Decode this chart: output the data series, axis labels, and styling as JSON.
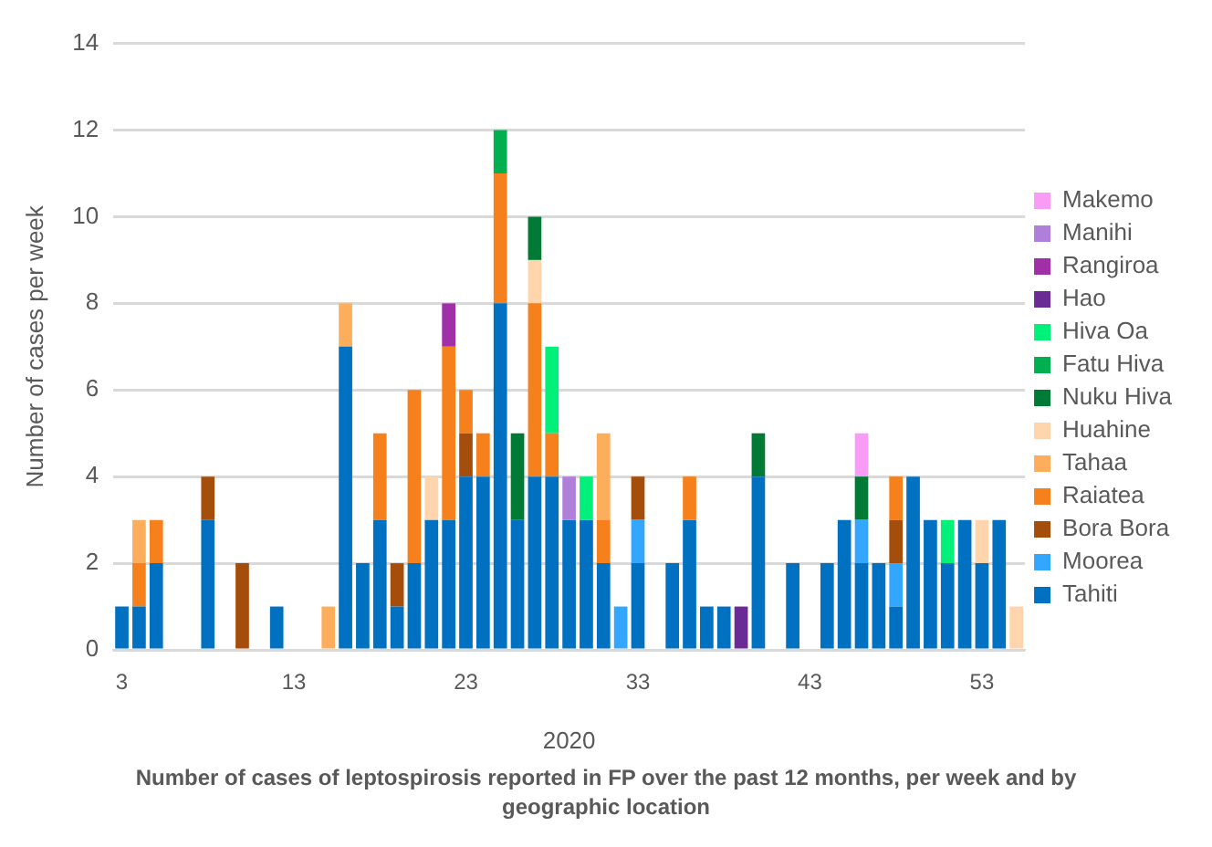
{
  "chart_data": {
    "type": "bar",
    "stacked": true,
    "title": "Number of cases of leptospirosis reported in FP over the past 12 months, per week and by geographic location",
    "xlabel": "2020",
    "ylabel": "Number of cases per week",
    "categories": [
      "3",
      null,
      null,
      null,
      null,
      null,
      null,
      null,
      null,
      null,
      "13",
      null,
      null,
      null,
      null,
      null,
      null,
      null,
      null,
      null,
      "23",
      null,
      null,
      null,
      null,
      null,
      null,
      null,
      null,
      null,
      "33",
      null,
      null,
      null,
      null,
      null,
      null,
      null,
      null,
      null,
      "43",
      null,
      null,
      null,
      null,
      null,
      null,
      null,
      null,
      null,
      "53",
      null,
      null
    ],
    "ylim": [
      0,
      14
    ],
    "yticks": [
      0,
      2,
      4,
      6,
      8,
      10,
      12,
      14
    ],
    "grid": "y",
    "legend": "right",
    "series": [
      {
        "name": "Tahiti",
        "color": "#0070c0",
        "values": [
          1,
          1,
          2,
          null,
          null,
          3,
          null,
          null,
          null,
          1,
          null,
          null,
          null,
          7,
          2,
          3,
          1,
          2,
          3,
          3,
          4,
          4,
          8,
          3,
          4,
          4,
          3,
          3,
          2,
          null,
          2,
          null,
          2,
          3,
          1,
          1,
          null,
          4,
          null,
          2,
          null,
          2,
          3,
          2,
          2,
          1,
          4,
          3,
          2,
          3,
          2,
          3,
          null
        ]
      },
      {
        "name": "Moorea",
        "color": "#33a6ff",
        "values": [
          null,
          null,
          null,
          null,
          null,
          null,
          null,
          null,
          null,
          null,
          null,
          null,
          null,
          null,
          null,
          null,
          null,
          null,
          null,
          null,
          null,
          null,
          null,
          null,
          null,
          null,
          null,
          null,
          null,
          1,
          1,
          null,
          null,
          null,
          null,
          null,
          null,
          null,
          null,
          null,
          null,
          null,
          null,
          1,
          null,
          1,
          null,
          null,
          null,
          null,
          null,
          null,
          null
        ]
      },
      {
        "name": "Bora Bora",
        "color": "#a54e0b",
        "values": [
          null,
          null,
          null,
          null,
          null,
          1,
          null,
          2,
          null,
          null,
          null,
          null,
          null,
          null,
          null,
          null,
          1,
          null,
          null,
          null,
          1,
          null,
          null,
          null,
          null,
          null,
          null,
          null,
          null,
          null,
          1,
          null,
          null,
          null,
          null,
          null,
          null,
          null,
          null,
          null,
          null,
          null,
          null,
          null,
          null,
          1,
          null,
          null,
          null,
          null,
          null,
          null,
          null
        ]
      },
      {
        "name": "Raiatea",
        "color": "#f5801c",
        "values": [
          null,
          1,
          1,
          null,
          null,
          null,
          null,
          null,
          null,
          null,
          null,
          null,
          null,
          null,
          null,
          2,
          null,
          4,
          null,
          4,
          1,
          1,
          3,
          null,
          4,
          1,
          null,
          null,
          1,
          null,
          null,
          null,
          null,
          1,
          null,
          null,
          null,
          null,
          null,
          null,
          null,
          null,
          null,
          null,
          null,
          1,
          null,
          null,
          null,
          null,
          null,
          null,
          null
        ]
      },
      {
        "name": "Tahaa",
        "color": "#fdae5c",
        "values": [
          null,
          1,
          null,
          null,
          null,
          null,
          null,
          null,
          null,
          null,
          null,
          null,
          1,
          1,
          null,
          null,
          null,
          null,
          null,
          null,
          null,
          null,
          null,
          null,
          null,
          null,
          null,
          null,
          2,
          null,
          null,
          null,
          null,
          null,
          null,
          null,
          null,
          null,
          null,
          null,
          null,
          null,
          null,
          null,
          null,
          null,
          null,
          null,
          null,
          null,
          null,
          null,
          null
        ]
      },
      {
        "name": "Huahine",
        "color": "#fed5ac",
        "values": [
          null,
          null,
          null,
          null,
          null,
          null,
          null,
          null,
          null,
          null,
          null,
          null,
          null,
          null,
          null,
          null,
          null,
          null,
          1,
          null,
          null,
          null,
          null,
          null,
          1,
          null,
          null,
          null,
          null,
          null,
          null,
          null,
          null,
          null,
          null,
          null,
          null,
          null,
          null,
          null,
          null,
          null,
          null,
          null,
          null,
          null,
          null,
          null,
          null,
          null,
          1,
          null,
          1
        ]
      },
      {
        "name": "Nuku Hiva",
        "color": "#007a35",
        "values": [
          null,
          null,
          null,
          null,
          null,
          null,
          null,
          null,
          null,
          null,
          null,
          null,
          null,
          null,
          null,
          null,
          null,
          null,
          null,
          null,
          null,
          null,
          null,
          2,
          1,
          null,
          null,
          null,
          null,
          null,
          null,
          null,
          null,
          null,
          null,
          null,
          null,
          1,
          null,
          null,
          null,
          null,
          null,
          1,
          null,
          null,
          null,
          null,
          null,
          null,
          null,
          null,
          null
        ]
      },
      {
        "name": "Fatu Hiva",
        "color": "#00b050",
        "values": [
          null,
          null,
          null,
          null,
          null,
          null,
          null,
          null,
          null,
          null,
          null,
          null,
          null,
          null,
          null,
          null,
          null,
          null,
          null,
          null,
          null,
          null,
          1,
          null,
          null,
          null,
          null,
          null,
          null,
          null,
          null,
          null,
          null,
          null,
          null,
          null,
          null,
          null,
          null,
          null,
          null,
          null,
          null,
          null,
          null,
          null,
          null,
          null,
          null,
          null,
          null,
          null,
          null
        ]
      },
      {
        "name": "Hiva Oa",
        "color": "#00f07a",
        "values": [
          null,
          null,
          null,
          null,
          null,
          null,
          null,
          null,
          null,
          null,
          null,
          null,
          null,
          null,
          null,
          null,
          null,
          null,
          null,
          null,
          null,
          null,
          null,
          null,
          null,
          2,
          null,
          1,
          null,
          null,
          null,
          null,
          null,
          null,
          null,
          null,
          null,
          null,
          null,
          null,
          null,
          null,
          null,
          null,
          null,
          null,
          null,
          null,
          1,
          null,
          null,
          null,
          null
        ]
      },
      {
        "name": "Hao",
        "color": "#6a2b94",
        "values": [
          null,
          null,
          null,
          null,
          null,
          null,
          null,
          null,
          null,
          null,
          null,
          null,
          null,
          null,
          null,
          null,
          null,
          null,
          null,
          null,
          null,
          null,
          null,
          null,
          null,
          null,
          null,
          null,
          null,
          null,
          null,
          null,
          null,
          null,
          null,
          null,
          1,
          null,
          null,
          null,
          null,
          null,
          null,
          null,
          null,
          null,
          null,
          null,
          null,
          null,
          null,
          null,
          null
        ]
      },
      {
        "name": "Rangiroa",
        "color": "#a030a8",
        "values": [
          null,
          null,
          null,
          null,
          null,
          null,
          null,
          null,
          null,
          null,
          null,
          null,
          null,
          null,
          null,
          null,
          null,
          null,
          null,
          1,
          null,
          null,
          null,
          null,
          null,
          null,
          null,
          null,
          null,
          null,
          null,
          null,
          null,
          null,
          null,
          null,
          null,
          null,
          null,
          null,
          null,
          null,
          null,
          null,
          null,
          null,
          null,
          null,
          null,
          null,
          null,
          null,
          null
        ]
      },
      {
        "name": "Manihi",
        "color": "#b07fda",
        "values": [
          null,
          null,
          null,
          null,
          null,
          null,
          null,
          null,
          null,
          null,
          null,
          null,
          null,
          null,
          null,
          null,
          null,
          null,
          null,
          null,
          null,
          null,
          null,
          null,
          null,
          null,
          1,
          null,
          null,
          null,
          null,
          null,
          null,
          null,
          null,
          null,
          null,
          null,
          null,
          null,
          null,
          null,
          null,
          null,
          null,
          null,
          null,
          null,
          null,
          null,
          null,
          null,
          null
        ]
      },
      {
        "name": "Makemo",
        "color": "#f99cf5",
        "values": [
          null,
          null,
          null,
          null,
          null,
          null,
          null,
          null,
          null,
          null,
          null,
          null,
          null,
          null,
          null,
          null,
          null,
          null,
          null,
          null,
          null,
          null,
          null,
          null,
          null,
          null,
          null,
          null,
          null,
          null,
          null,
          null,
          null,
          null,
          null,
          null,
          null,
          null,
          null,
          null,
          null,
          null,
          null,
          1,
          null,
          null,
          null,
          null,
          null,
          null,
          null,
          null,
          null
        ]
      }
    ]
  }
}
